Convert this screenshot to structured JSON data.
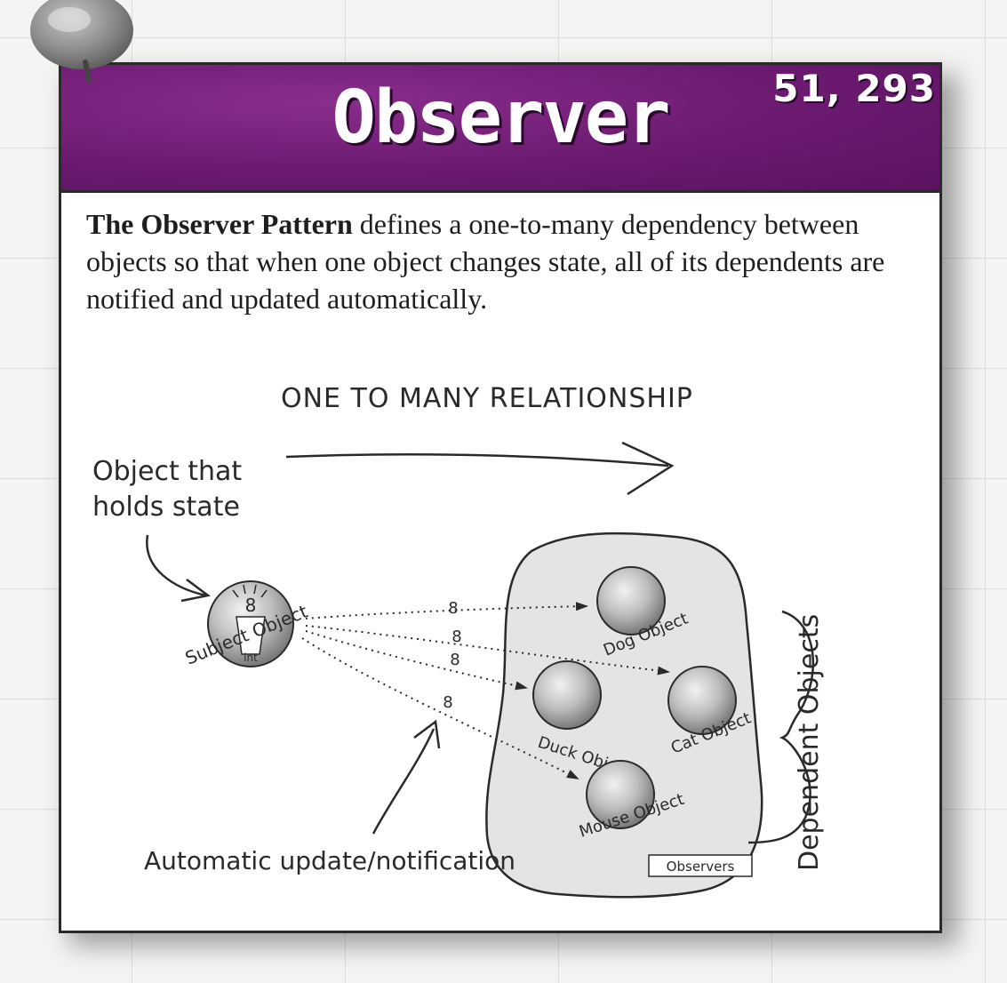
{
  "header": {
    "title": "Observer",
    "page_refs": "51, 293"
  },
  "definition": {
    "lead": "The Observer Pattern",
    "body": " defines a one-to-many dependency between objects so that when one object changes state, all of its dependents are notified and updated automatically."
  },
  "diagram": {
    "relationship_label": "ONE TO MANY RELATIONSHIP",
    "state_holder_note_line1": "Object that",
    "state_holder_note_line2": "holds state",
    "subject_label": "Subject Object",
    "subject_int_label": "int",
    "state_value": "8",
    "observers": [
      {
        "label": "Dog Object"
      },
      {
        "label": "Cat Object"
      },
      {
        "label": "Duck Object"
      },
      {
        "label": "Mouse Object"
      }
    ],
    "observers_box_label": "Observers",
    "dependents_label": "Dependent Objects",
    "notification_label": "Automatic update/notification"
  },
  "colors": {
    "banner": "#6b1a70",
    "blob": "#e4e4e4",
    "ink": "#2a2a2a"
  }
}
